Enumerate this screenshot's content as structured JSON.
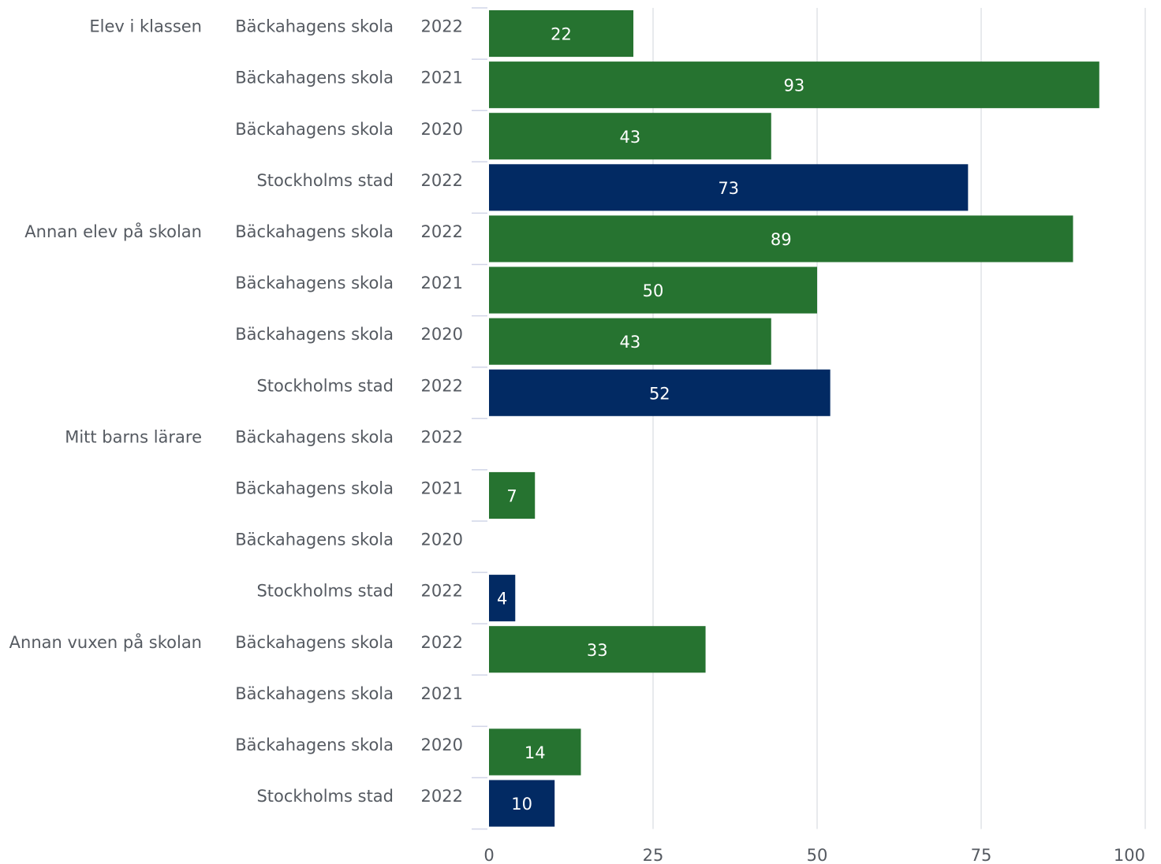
{
  "chart_data": {
    "type": "bar",
    "orientation": "horizontal",
    "xlim": [
      0,
      100
    ],
    "x_ticks": [
      "0",
      "25",
      "50",
      "75",
      "100"
    ],
    "grid": true,
    "colors": {
      "school": "#267330",
      "city": "#022a63"
    },
    "groups": [
      {
        "label": "Elev i klassen",
        "rows": [
          {
            "entity": "Bäckahagens skola",
            "year": "2022",
            "value": 22,
            "label": "22",
            "kind": "school"
          },
          {
            "entity": "Bäckahagens skola",
            "year": "2021",
            "value": 93,
            "label": "93",
            "kind": "school"
          },
          {
            "entity": "Bäckahagens skola",
            "year": "2020",
            "value": 43,
            "label": "43",
            "kind": "school"
          },
          {
            "entity": "Stockholms stad",
            "year": "2022",
            "value": 73,
            "label": "73",
            "kind": "city"
          }
        ]
      },
      {
        "label": "Annan elev på skolan",
        "rows": [
          {
            "entity": "Bäckahagens skola",
            "year": "2022",
            "value": 89,
            "label": "89",
            "kind": "school"
          },
          {
            "entity": "Bäckahagens skola",
            "year": "2021",
            "value": 50,
            "label": "50",
            "kind": "school"
          },
          {
            "entity": "Bäckahagens skola",
            "year": "2020",
            "value": 43,
            "label": "43",
            "kind": "school"
          },
          {
            "entity": "Stockholms stad",
            "year": "2022",
            "value": 52,
            "label": "52",
            "kind": "city"
          }
        ]
      },
      {
        "label": "Mitt barns lärare",
        "rows": [
          {
            "entity": "Bäckahagens skola",
            "year": "2022",
            "value": null,
            "label": "",
            "kind": "school"
          },
          {
            "entity": "Bäckahagens skola",
            "year": "2021",
            "value": 7,
            "label": "7",
            "kind": "school"
          },
          {
            "entity": "Bäckahagens skola",
            "year": "2020",
            "value": null,
            "label": "",
            "kind": "school"
          },
          {
            "entity": "Stockholms stad",
            "year": "2022",
            "value": 4,
            "label": "4",
            "kind": "city"
          }
        ]
      },
      {
        "label": "Annan vuxen på skolan",
        "rows": [
          {
            "entity": "Bäckahagens skola",
            "year": "2022",
            "value": 33,
            "label": "33",
            "kind": "school"
          },
          {
            "entity": "Bäckahagens skola",
            "year": "2021",
            "value": null,
            "label": "",
            "kind": "school"
          },
          {
            "entity": "Bäckahagens skola",
            "year": "2020",
            "value": 14,
            "label": "14",
            "kind": "school"
          },
          {
            "entity": "Stockholms stad",
            "year": "2022",
            "value": 10,
            "label": "10",
            "kind": "city"
          }
        ]
      }
    ]
  }
}
